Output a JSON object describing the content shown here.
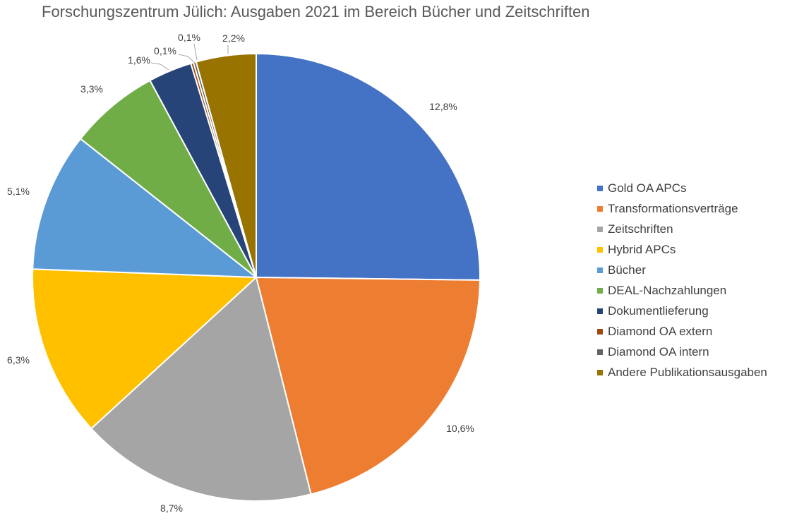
{
  "chart_data": {
    "type": "pie",
    "title": "Forschungszentrum Jülich: Ausgaben 2021 im Bereich Bücher und Zeitschriften",
    "categories": [
      "Gold OA APCs",
      "Transformationsverträge",
      "Zeitschriften",
      "Hybrid APCs",
      "Bücher",
      "DEAL-Nachzahlungen",
      "Dokumentlieferung",
      "Diamond OA extern",
      "Diamond OA intern",
      "Andere Publikationsausgaben"
    ],
    "values": [
      12.8,
      10.6,
      8.7,
      6.3,
      5.1,
      3.3,
      1.6,
      0.1,
      0.1,
      2.2
    ],
    "labels": [
      "12,8%",
      "10,6%",
      "8,7%",
      "6,3%",
      "5,1%",
      "3,3%",
      "1,6%",
      "0,1%",
      "0,1%",
      "2,2%"
    ],
    "colors": [
      "#4472C4",
      "#ED7D31",
      "#A5A5A5",
      "#FFC000",
      "#5B9BD5",
      "#70AD47",
      "#264478",
      "#9E480E",
      "#636363",
      "#997300"
    ],
    "legend_position": "right"
  }
}
